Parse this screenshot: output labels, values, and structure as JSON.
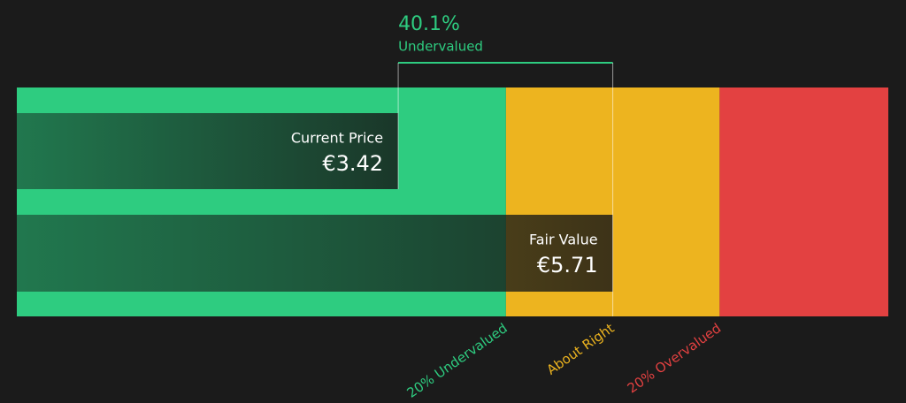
{
  "chart_data": {
    "type": "valuation",
    "xlim": [
      -0.65,
      8.65
    ],
    "bars": [
      {
        "name": "Current Price",
        "value": 3.42,
        "value_label": "€3.42"
      },
      {
        "name": "Fair Value",
        "value": 5.71,
        "value_label": "€5.71"
      }
    ],
    "difference": {
      "value": 40.1,
      "label": "40.1%",
      "text": "Undervalued",
      "color": "#2ecc80"
    },
    "zones": [
      {
        "label": "20% Undervalued",
        "end": 4.57,
        "color": "#2ecc80"
      },
      {
        "label": "About Right",
        "end": 6.85,
        "color": "#edb41f"
      },
      {
        "label": "20% Overvalued",
        "end": 8.65,
        "color": "#e34141"
      }
    ]
  }
}
